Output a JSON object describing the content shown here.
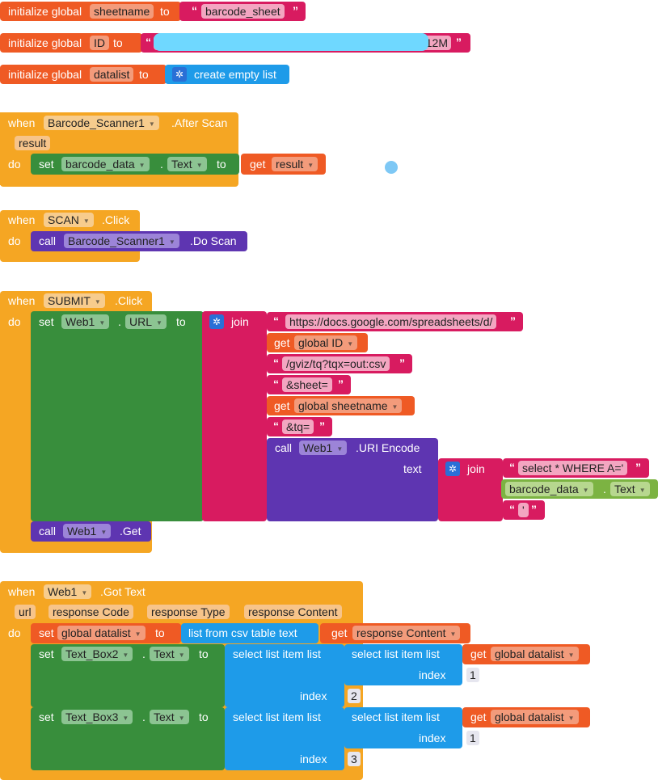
{
  "globals": {
    "init_label": "initialize global",
    "to": "to",
    "sheetname_var": "sheetname",
    "sheetname_val": "barcode_sheet",
    "id_var": "ID",
    "id_val_suffix": "c12M",
    "datalist_var": "datalist",
    "create_empty_list": "create empty list"
  },
  "kw": {
    "when": "when",
    "do": "do",
    "set": "set",
    "get": "get",
    "call": "call",
    "to": "to",
    "join": "join",
    "text": "text",
    "index": "index",
    "dot": "."
  },
  "after_scan": {
    "component": "Barcode_Scanner1",
    "event": ".After Scan",
    "param": "result",
    "set_comp": "barcode_data",
    "set_prop": "Text",
    "get_var": "result"
  },
  "scan_click": {
    "component": "SCAN",
    "event": ".Click",
    "call_comp": "Barcode_Scanner1",
    "call_method": ".Do Scan"
  },
  "submit_click": {
    "component": "SUBMIT",
    "event": ".Click",
    "set_comp": "Web1",
    "set_prop": "URL",
    "str_url": "https://docs.google.com/spreadsheets/d/",
    "get_id": "global ID",
    "str_gviz": "/gviz/tq?tqx=out:csv",
    "str_sheet": "&sheet=",
    "get_sheet": "global sheetname",
    "str_tq": "&tq=",
    "encode_comp": "Web1",
    "encode_method": ".URI Encode",
    "str_select": "select * WHERE A='",
    "join_comp": "barcode_data",
    "join_prop": "Text",
    "str_quote": "'",
    "get_comp": "Web1",
    "get_method": ".Get"
  },
  "got_text": {
    "component": "Web1",
    "event": ".Got Text",
    "params": [
      "url",
      "response Code",
      "response Type",
      "response Content"
    ],
    "set_var": "global datalist",
    "csv_table": "list from csv table  text",
    "get_content": "response Content",
    "select_list_item": "select list item  list",
    "get_datalist": "global datalist",
    "row1": {
      "comp": "Text_Box2",
      "prop": "Text",
      "inner_index": "1",
      "outer_index": "2"
    },
    "row2": {
      "comp": "Text_Box3",
      "prop": "Text",
      "inner_index": "1",
      "outer_index": "3"
    }
  }
}
